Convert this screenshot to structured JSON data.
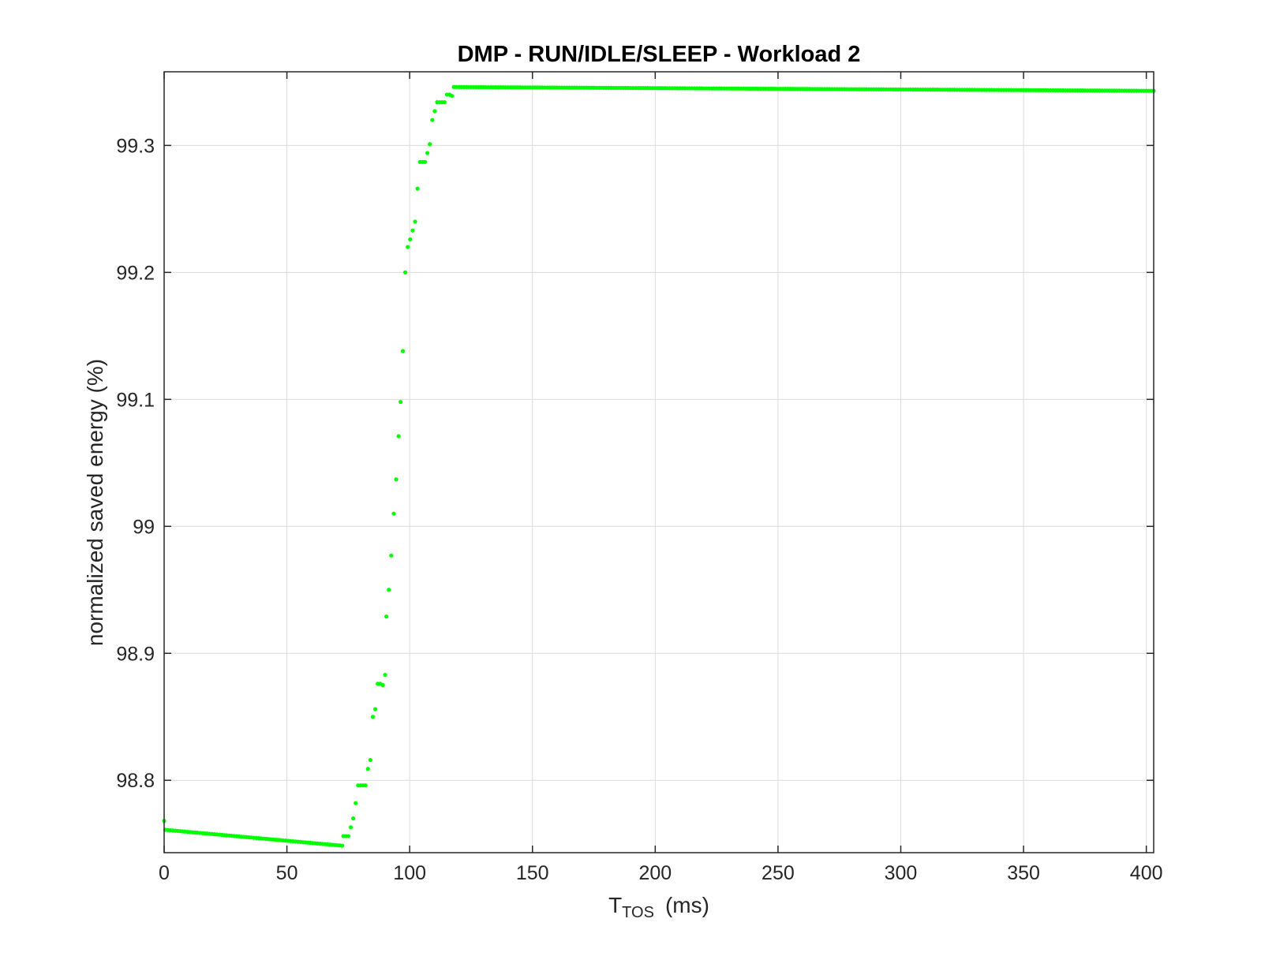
{
  "chart_data": {
    "type": "scatter",
    "title": "DMP - RUN/IDLE/SLEEP - Workload 2",
    "xlabel": {
      "main": "T",
      "subscript": "TOS",
      "unit": "(ms)"
    },
    "ylabel": "normalized saved energy (%)",
    "xlim": [
      0,
      403
    ],
    "ylim": [
      98.743,
      99.358
    ],
    "xticks": [
      0,
      50,
      100,
      150,
      200,
      250,
      300,
      350,
      400
    ],
    "xtick_labels": [
      "0",
      "50",
      "100",
      "150",
      "200",
      "250",
      "300",
      "350",
      "400"
    ],
    "yticks": [
      98.8,
      98.9,
      99.0,
      99.1,
      99.2,
      99.3
    ],
    "ytick_labels": [
      "98.8",
      "98.9",
      "99",
      "99.1",
      "99.2",
      "99.3"
    ],
    "grid": true,
    "marker_color": "#00ff00",
    "series": [
      {
        "segments": [
          {
            "x_start": 0.5,
            "x_end": 72,
            "y_start": 98.761,
            "y_end": 98.7485,
            "step": 1
          },
          {
            "x_start": 118,
            "x_end": 403,
            "y_start": 99.346,
            "y_end": 99.343,
            "step": 1
          }
        ],
        "points": [
          [
            0,
            98.768
          ],
          [
            73,
            98.756
          ],
          [
            74,
            98.756
          ],
          [
            75,
            98.756
          ],
          [
            76,
            98.763
          ],
          [
            77,
            98.77
          ],
          [
            78,
            98.782
          ],
          [
            79,
            98.796
          ],
          [
            80,
            98.796
          ],
          [
            81,
            98.796
          ],
          [
            82,
            98.796
          ],
          [
            83,
            98.809
          ],
          [
            84,
            98.816
          ],
          [
            85,
            98.85
          ],
          [
            86,
            98.856
          ],
          [
            87,
            98.876
          ],
          [
            88,
            98.876
          ],
          [
            89,
            98.875
          ],
          [
            90,
            98.883
          ],
          [
            90.5,
            98.929
          ],
          [
            91.5,
            98.95
          ],
          [
            92.5,
            98.977
          ],
          [
            93.5,
            99.01
          ],
          [
            94.5,
            99.037
          ],
          [
            95.5,
            99.071
          ],
          [
            96.3,
            99.098
          ],
          [
            97.2,
            99.138
          ],
          [
            98.2,
            99.2
          ],
          [
            99.2,
            99.22
          ],
          [
            100.2,
            99.226
          ],
          [
            101.2,
            99.233
          ],
          [
            102.2,
            99.24
          ],
          [
            103.2,
            99.266
          ],
          [
            104.2,
            99.287
          ],
          [
            105.2,
            99.287
          ],
          [
            106.2,
            99.287
          ],
          [
            107.2,
            99.294
          ],
          [
            108.2,
            99.301
          ],
          [
            109.2,
            99.32
          ],
          [
            110.2,
            99.327
          ],
          [
            111.2,
            99.334
          ],
          [
            112.2,
            99.334
          ],
          [
            113.2,
            99.334
          ],
          [
            114.2,
            99.334
          ],
          [
            115.2,
            99.34
          ],
          [
            116.2,
            99.34
          ],
          [
            117.2,
            99.339
          ]
        ]
      }
    ]
  }
}
